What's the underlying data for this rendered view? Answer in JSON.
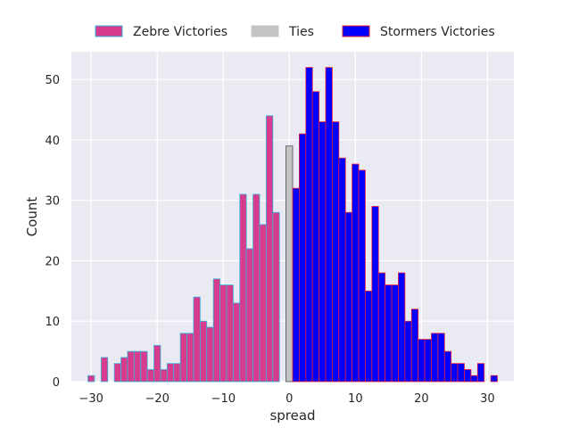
{
  "chart_data": {
    "type": "bar",
    "xlabel": "spread",
    "ylabel": "Count",
    "xlim": [
      -33,
      34
    ],
    "ylim": [
      0,
      54.6
    ],
    "x_ticks": [
      -30,
      -20,
      -10,
      0,
      10,
      20,
      30
    ],
    "y_ticks": [
      0,
      10,
      20,
      30,
      40,
      50
    ],
    "grid": true,
    "legend_position": "top-center",
    "series": [
      {
        "name": "Zebre Victories",
        "fill": "#d63b8e",
        "edge": "#36b5d8",
        "x": [
          -30,
          -29,
          -28,
          -27,
          -26,
          -25,
          -24,
          -23,
          -22,
          -21,
          -20,
          -19,
          -18,
          -17,
          -16,
          -15,
          -14,
          -13,
          -12,
          -11,
          -10,
          -9,
          -8,
          -7,
          -6,
          -5,
          -4,
          -3,
          -2,
          -1
        ],
        "values": [
          1,
          0,
          4,
          0,
          3,
          4,
          5,
          5,
          5,
          2,
          6,
          2,
          3,
          3,
          8,
          8,
          14,
          10,
          9,
          17,
          16,
          16,
          13,
          31,
          22,
          31,
          26,
          44,
          28,
          0
        ]
      },
      {
        "name": "Ties",
        "fill": "#c4c4c4",
        "edge": "#4a4a4a",
        "x": [
          0
        ],
        "values": [
          39
        ]
      },
      {
        "name": "Stormers Victories",
        "fill": "#0000ff",
        "edge": "#e8203a",
        "x": [
          1,
          2,
          3,
          4,
          5,
          6,
          7,
          8,
          9,
          10,
          11,
          12,
          13,
          14,
          15,
          16,
          17,
          18,
          19,
          20,
          21,
          22,
          23,
          24,
          25,
          26,
          27,
          28,
          29,
          30,
          31
        ],
        "values": [
          32,
          41,
          52,
          48,
          43,
          52,
          43,
          37,
          28,
          36,
          35,
          15,
          29,
          18,
          16,
          16,
          18,
          10,
          12,
          7,
          7,
          8,
          8,
          5,
          3,
          3,
          2,
          1,
          3,
          0,
          1
        ]
      }
    ]
  },
  "colors": {
    "plot_background": "#eaeaf2",
    "grid": "#ffffff",
    "text": "#262626"
  }
}
